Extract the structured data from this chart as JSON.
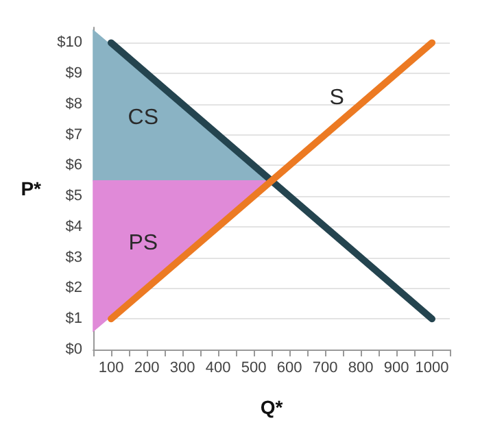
{
  "chart_data": {
    "type": "line",
    "xlabel": "Q*",
    "ylabel": "P*",
    "xlim": [
      50,
      1050
    ],
    "ylim": [
      0,
      10.5
    ],
    "xticks": [
      {
        "value": 50,
        "label": null
      },
      100,
      {
        "value": 150,
        "label": null
      },
      200,
      {
        "value": 250,
        "label": null
      },
      300,
      {
        "value": 350,
        "label": null
      },
      400,
      {
        "value": 450,
        "label": null
      },
      500,
      {
        "value": 550,
        "label": null
      },
      600,
      {
        "value": 650,
        "label": null
      },
      700,
      {
        "value": 750,
        "label": null
      },
      800,
      {
        "value": 850,
        "label": null
      },
      900,
      {
        "value": 950,
        "label": null
      },
      1000,
      {
        "value": 1050,
        "label": null
      }
    ],
    "yticks": [
      {
        "value": 0,
        "label": "$0"
      },
      {
        "value": 1,
        "label": "$1"
      },
      {
        "value": 2,
        "label": "$2"
      },
      {
        "value": 3,
        "label": "$3"
      },
      {
        "value": 4,
        "label": "$4"
      },
      {
        "value": 5,
        "label": "$5"
      },
      {
        "value": 6,
        "label": "$6"
      },
      {
        "value": 7,
        "label": "$7"
      },
      {
        "value": 8,
        "label": "$8"
      },
      {
        "value": 9,
        "label": "$9"
      },
      {
        "value": 10,
        "label": "$10"
      }
    ],
    "grid": "y",
    "marker": "none",
    "series": [
      {
        "type": "area",
        "name": "CS",
        "color": "#8ab3c4",
        "x": [
          50,
          550,
          50
        ],
        "values": [
          10.4,
          5.5,
          5.5
        ]
      },
      {
        "type": "area",
        "name": "PS",
        "color": "#e08ad8",
        "x": [
          50,
          550,
          50
        ],
        "values": [
          5.5,
          5.5,
          0.6
        ]
      },
      {
        "color": "#24444f",
        "x": [
          100,
          1000
        ],
        "values": [
          10,
          1
        ]
      },
      {
        "name": "S",
        "color": "#ec7a23",
        "x": [
          100,
          1000
        ],
        "values": [
          1,
          10
        ]
      }
    ]
  }
}
